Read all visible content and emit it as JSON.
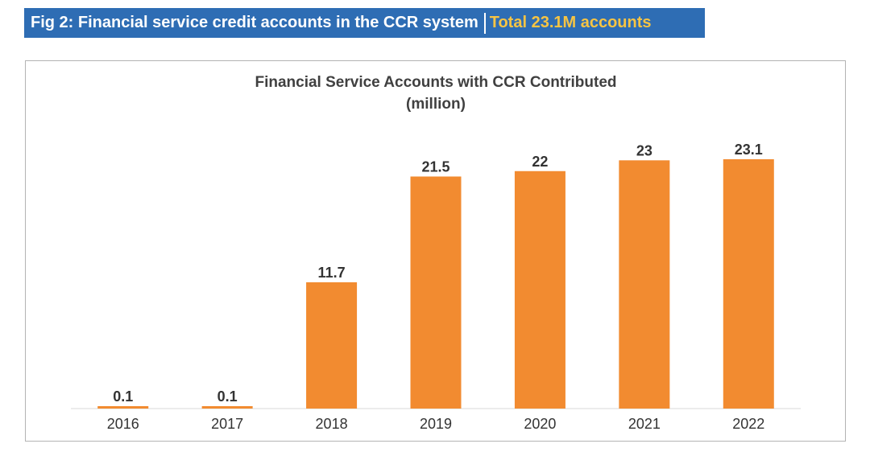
{
  "figure": {
    "caption": "Fig 2: Financial service credit accounts in the CCR system",
    "highlight": "Total 23.1M accounts",
    "banner_color": "#2e6db4",
    "highlight_color": "#f7c443"
  },
  "chart_data": {
    "type": "bar",
    "title": "Financial Service Accounts with CCR Contributed",
    "subtitle": "(million)",
    "categories": [
      "2016",
      "2017",
      "2018",
      "2019",
      "2020",
      "2021",
      "2022"
    ],
    "values": [
      0.1,
      0.1,
      11.7,
      21.5,
      22,
      23,
      23.1
    ],
    "data_labels": [
      "0.1",
      "0.1",
      "11.7",
      "21.5",
      "22",
      "23",
      "23.1"
    ],
    "xlabel": "",
    "ylabel": "",
    "ylim": [
      0,
      23.1
    ],
    "grid": false,
    "legend": "none",
    "bar_color": "#f28b30"
  }
}
